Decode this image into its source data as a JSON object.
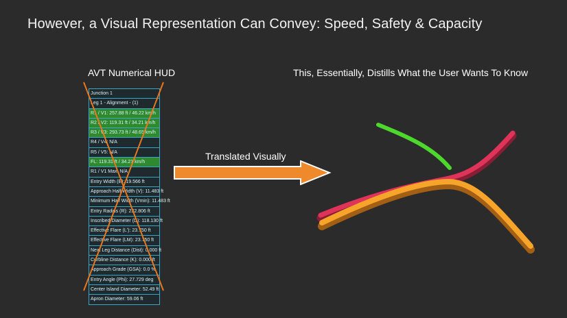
{
  "slide": {
    "title": "However, a Visual Representation Can Convey: Speed, Safety & Capacity"
  },
  "left_section": {
    "label": "AVT Numerical HUD"
  },
  "right_section": {
    "label": "This, Essentially, Distills What the User Wants To Know"
  },
  "arrow": {
    "label": "Translated Visually",
    "color": "#ee8a2c"
  },
  "hud": {
    "border_color": "#3aa6c8",
    "highlight_color": "#2f8a2f",
    "cross_color": "#e8781f",
    "rows": [
      {
        "text": "Junction 1",
        "highlight": false
      },
      {
        "text": "Leg 1 - Alignment - (1)",
        "highlight": false
      },
      {
        "text": "R1 / V1: 257.88 ft / 46.22 km/h",
        "highlight": true
      },
      {
        "text": "R2 / V2: 119.31 ft / 34.21 km/h",
        "highlight": true
      },
      {
        "text": "R3 / V3: 293.73 ft / 48.65 km/h",
        "highlight": true
      },
      {
        "text": "R4 / V4: N/A",
        "highlight": false
      },
      {
        "text": "R5 / V5: N/A",
        "highlight": false
      },
      {
        "text": "FL: 119.31 ft / 34.21 km/h",
        "highlight": true
      },
      {
        "text": "R1 / V1 Max: N/A",
        "highlight": false
      },
      {
        "text": "Entry Width (E): 19.566 ft",
        "highlight": false
      },
      {
        "text": "Approach Half Width (V): 11.483 ft",
        "highlight": false
      },
      {
        "text": "Minimum Half Width (Vmin): 11.483 ft",
        "highlight": false
      },
      {
        "text": "Entry Radius (R): 232.806 ft",
        "highlight": false
      },
      {
        "text": "Inscribed Diameter (D): 118.130 ft",
        "highlight": false
      },
      {
        "text": "Effective Flare (L'): 23.750 ft",
        "highlight": false
      },
      {
        "text": "Effective Flare (LM): 23.750 ft",
        "highlight": false
      },
      {
        "text": "Next Leg Distance (Dist): 0.000 ft",
        "highlight": false
      },
      {
        "text": "Curbline Distance (K): 0.000 ft",
        "highlight": false
      },
      {
        "text": "Approach Grade (GSA): 0.0 %",
        "highlight": false
      },
      {
        "text": "Entry Angle (Phi): 27.729 deg",
        "highlight": false
      },
      {
        "text": "Center Island Diameter: 52.49 ft",
        "highlight": false
      },
      {
        "text": "Apron Diameter: 59.06 ft",
        "highlight": false
      }
    ]
  },
  "roads": [
    {
      "name": "green-road",
      "color": "#4cd82c"
    },
    {
      "name": "red-road",
      "color": "#e0335a"
    },
    {
      "name": "orange-road",
      "color": "#f7a42a"
    }
  ]
}
